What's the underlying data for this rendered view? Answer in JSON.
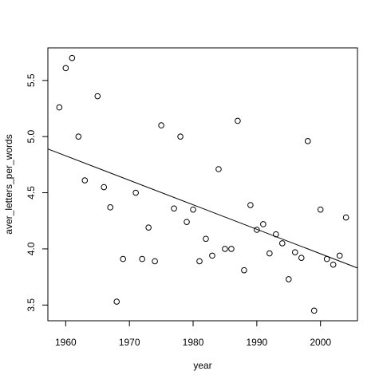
{
  "chart_data": {
    "type": "scatter",
    "x_label": "year",
    "y_label": "aver_letters_per_words",
    "x": [
      1959,
      1960,
      1961,
      1962,
      1963,
      1965,
      1966,
      1967,
      1968,
      1969,
      1971,
      1972,
      1973,
      1974,
      1975,
      1977,
      1978,
      1979,
      1980,
      1981,
      1982,
      1983,
      1984,
      1985,
      1986,
      1987,
      1988,
      1989,
      1990,
      1991,
      1992,
      1993,
      1994,
      1995,
      1996,
      1997,
      1998,
      1999,
      2000,
      2001,
      2002,
      2003,
      2004
    ],
    "values": [
      5.26,
      5.61,
      5.7,
      5.0,
      4.61,
      5.36,
      4.55,
      4.37,
      3.53,
      3.91,
      4.5,
      3.91,
      4.19,
      3.89,
      5.1,
      4.36,
      5.0,
      4.24,
      4.35,
      3.89,
      4.09,
      3.94,
      4.71,
      4.0,
      4.0,
      5.14,
      3.81,
      4.39,
      4.17,
      4.22,
      3.96,
      4.13,
      4.05,
      3.73,
      3.97,
      3.92,
      4.96,
      3.45,
      4.35,
      3.91,
      3.86,
      3.94,
      4.28
    ],
    "color": "#000000",
    "fit": {
      "x": [
        1957.2,
        2005.8
      ],
      "y": [
        4.89,
        3.83
      ]
    },
    "xlim": [
      1957.2,
      2005.8
    ],
    "ylim": [
      3.36,
      5.79
    ],
    "xticks": [
      1960,
      1970,
      1980,
      1990,
      2000
    ],
    "yticks": [
      3.5,
      {
        "value": 4,
        "label": "4.0"
      },
      4.5,
      {
        "value": 5,
        "label": "5.0"
      },
      5.5
    ],
    "grid": false
  }
}
